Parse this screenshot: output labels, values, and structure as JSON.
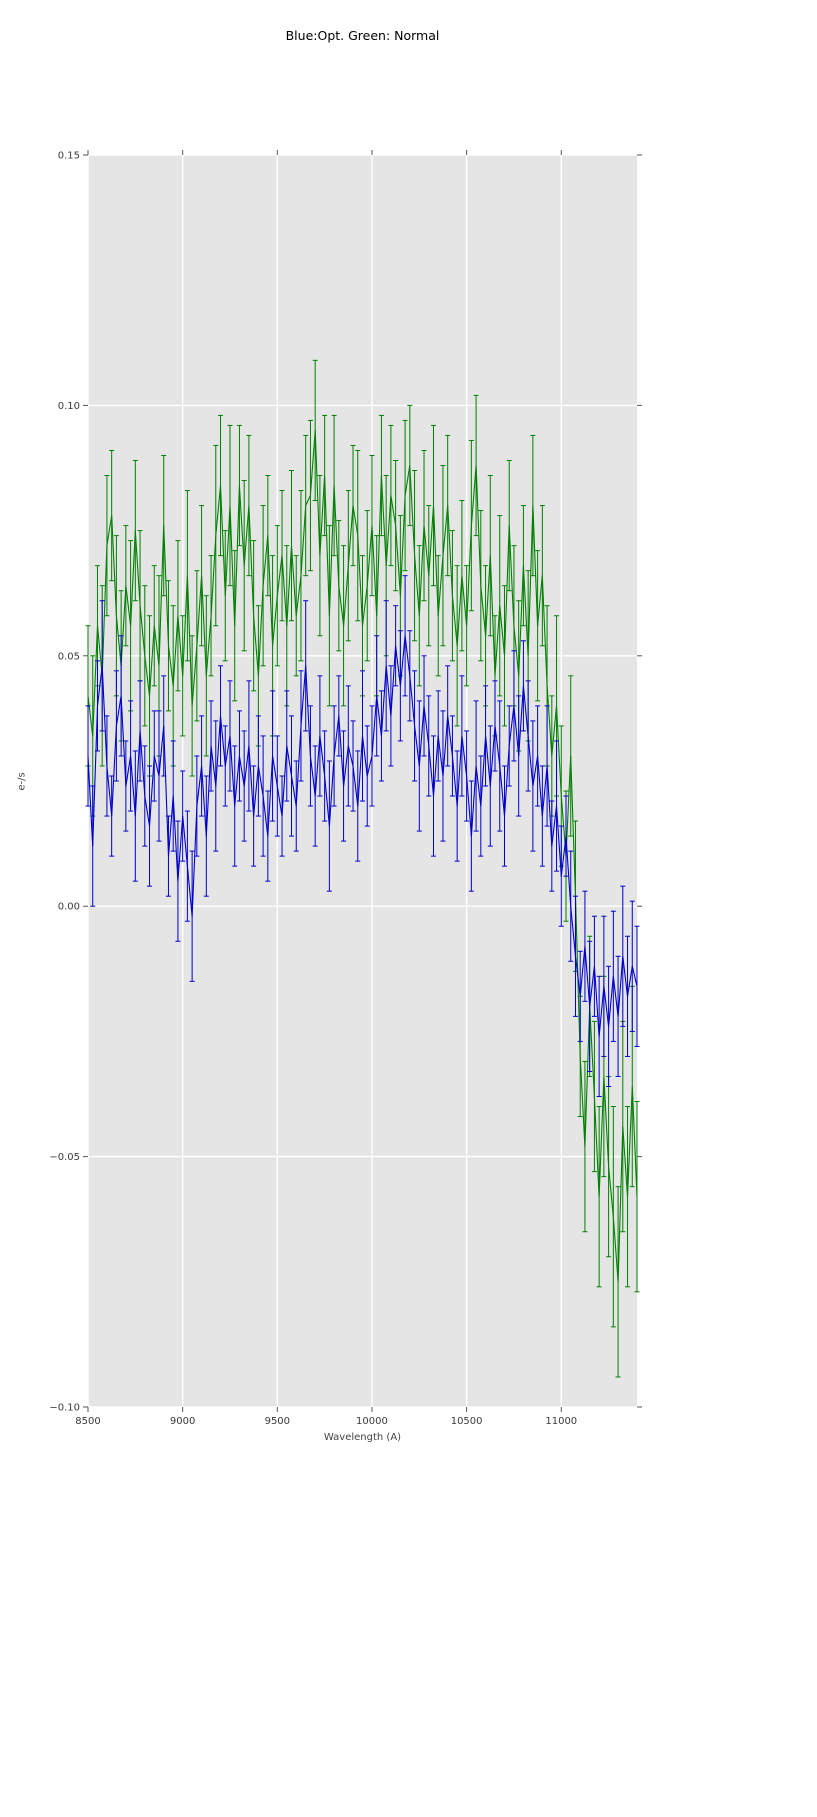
{
  "chart_data": {
    "type": "line",
    "title": "Blue:Opt. Green: Normal",
    "xlabel": "Wavelength (A)",
    "ylabel": "e-/s",
    "xlim": [
      8500,
      11400
    ],
    "ylim": [
      -0.1,
      0.15
    ],
    "xticks": [
      8500,
      9000,
      9500,
      10000,
      10500,
      11000
    ],
    "yticks": [
      -0.1,
      -0.05,
      0.0,
      0.05,
      0.1,
      0.15
    ],
    "grid": true,
    "legend": "none",
    "colors": {
      "plot_bg": "#e5e5e5",
      "grid": "#ffffff",
      "tick": "#555555",
      "blue": "#0000cd",
      "green": "#008000"
    },
    "x": [
      8500,
      8525,
      8550,
      8575,
      8600,
      8625,
      8650,
      8675,
      8700,
      8725,
      8750,
      8775,
      8800,
      8825,
      8850,
      8875,
      8900,
      8925,
      8950,
      8975,
      9000,
      9025,
      9050,
      9075,
      9100,
      9125,
      9150,
      9175,
      9200,
      9225,
      9250,
      9275,
      9300,
      9325,
      9350,
      9375,
      9400,
      9425,
      9450,
      9475,
      9500,
      9525,
      9550,
      9575,
      9600,
      9625,
      9650,
      9675,
      9700,
      9725,
      9750,
      9775,
      9800,
      9825,
      9850,
      9875,
      9900,
      9925,
      9950,
      9975,
      10000,
      10025,
      10050,
      10075,
      10100,
      10125,
      10150,
      10175,
      10200,
      10225,
      10250,
      10275,
      10300,
      10325,
      10350,
      10375,
      10400,
      10425,
      10450,
      10475,
      10500,
      10525,
      10550,
      10575,
      10600,
      10625,
      10650,
      10675,
      10700,
      10725,
      10750,
      10775,
      10800,
      10825,
      10850,
      10875,
      10900,
      10925,
      10950,
      10975,
      11000,
      11025,
      11050,
      11075,
      11100,
      11125,
      11150,
      11175,
      11200,
      11225,
      11250,
      11275,
      11300,
      11325,
      11350,
      11375,
      11400
    ],
    "series": [
      {
        "name": "Opt",
        "color_key": "blue",
        "values": [
          0.03,
          0.012,
          0.04,
          0.048,
          0.028,
          0.018,
          0.036,
          0.042,
          0.024,
          0.03,
          0.018,
          0.035,
          0.022,
          0.016,
          0.03,
          0.026,
          0.036,
          0.01,
          0.022,
          0.005,
          0.018,
          0.008,
          -0.002,
          0.02,
          0.028,
          0.014,
          0.032,
          0.024,
          0.038,
          0.028,
          0.034,
          0.02,
          0.03,
          0.024,
          0.032,
          0.018,
          0.028,
          0.022,
          0.014,
          0.03,
          0.024,
          0.018,
          0.032,
          0.026,
          0.02,
          0.036,
          0.048,
          0.03,
          0.022,
          0.034,
          0.026,
          0.016,
          0.03,
          0.038,
          0.024,
          0.032,
          0.028,
          0.02,
          0.034,
          0.026,
          0.03,
          0.042,
          0.034,
          0.048,
          0.038,
          0.052,
          0.044,
          0.054,
          0.046,
          0.036,
          0.028,
          0.04,
          0.032,
          0.022,
          0.034,
          0.026,
          0.038,
          0.03,
          0.02,
          0.034,
          0.026,
          0.014,
          0.028,
          0.02,
          0.034,
          0.024,
          0.036,
          0.028,
          0.018,
          0.032,
          0.04,
          0.03,
          0.044,
          0.034,
          0.024,
          0.03,
          0.018,
          0.028,
          0.012,
          0.02,
          0.006,
          0.014,
          0.0,
          -0.01,
          -0.018,
          -0.008,
          -0.02,
          -0.012,
          -0.026,
          -0.016,
          -0.024,
          -0.014,
          -0.022,
          -0.01,
          -0.018,
          -0.012,
          -0.016
        ],
        "yerr": [
          0.01,
          0.012,
          0.009,
          0.013,
          0.01,
          0.008,
          0.011,
          0.012,
          0.009,
          0.011,
          0.013,
          0.01,
          0.01,
          0.012,
          0.009,
          0.013,
          0.01,
          0.008,
          0.011,
          0.012,
          0.009,
          0.011,
          0.013,
          0.01,
          0.01,
          0.012,
          0.009,
          0.013,
          0.01,
          0.008,
          0.011,
          0.012,
          0.009,
          0.011,
          0.013,
          0.01,
          0.01,
          0.012,
          0.009,
          0.013,
          0.01,
          0.008,
          0.011,
          0.012,
          0.009,
          0.011,
          0.013,
          0.01,
          0.01,
          0.012,
          0.009,
          0.013,
          0.01,
          0.008,
          0.011,
          0.012,
          0.009,
          0.011,
          0.013,
          0.01,
          0.01,
          0.012,
          0.009,
          0.013,
          0.01,
          0.008,
          0.011,
          0.012,
          0.009,
          0.011,
          0.013,
          0.01,
          0.01,
          0.012,
          0.009,
          0.013,
          0.01,
          0.008,
          0.011,
          0.012,
          0.009,
          0.011,
          0.013,
          0.01,
          0.01,
          0.012,
          0.009,
          0.013,
          0.01,
          0.008,
          0.011,
          0.012,
          0.009,
          0.011,
          0.013,
          0.01,
          0.01,
          0.012,
          0.009,
          0.013,
          0.01,
          0.008,
          0.011,
          0.012,
          0.009,
          0.011,
          0.013,
          0.01,
          0.012,
          0.014,
          0.012,
          0.013,
          0.012,
          0.014,
          0.012,
          0.013,
          0.012
        ]
      },
      {
        "name": "Normal",
        "color_key": "green",
        "values": [
          0.042,
          0.034,
          0.056,
          0.046,
          0.072,
          0.078,
          0.058,
          0.048,
          0.064,
          0.056,
          0.075,
          0.06,
          0.05,
          0.042,
          0.056,
          0.048,
          0.076,
          0.052,
          0.044,
          0.058,
          0.046,
          0.066,
          0.04,
          0.052,
          0.066,
          0.046,
          0.058,
          0.074,
          0.084,
          0.062,
          0.08,
          0.056,
          0.084,
          0.068,
          0.08,
          0.058,
          0.046,
          0.064,
          0.074,
          0.052,
          0.062,
          0.07,
          0.056,
          0.072,
          0.058,
          0.066,
          0.08,
          0.082,
          0.095,
          0.07,
          0.086,
          0.058,
          0.084,
          0.064,
          0.056,
          0.068,
          0.08,
          0.074,
          0.056,
          0.064,
          0.076,
          0.058,
          0.086,
          0.068,
          0.082,
          0.076,
          0.062,
          0.082,
          0.088,
          0.07,
          0.058,
          0.076,
          0.066,
          0.08,
          0.058,
          0.07,
          0.08,
          0.062,
          0.052,
          0.066,
          0.056,
          0.076,
          0.088,
          0.064,
          0.054,
          0.07,
          0.046,
          0.06,
          0.05,
          0.076,
          0.056,
          0.046,
          0.068,
          0.05,
          0.08,
          0.056,
          0.066,
          0.044,
          0.03,
          0.04,
          0.022,
          0.01,
          0.03,
          0.002,
          -0.03,
          -0.048,
          -0.02,
          -0.038,
          -0.058,
          -0.034,
          -0.052,
          -0.062,
          -0.075,
          -0.044,
          -0.058,
          -0.036,
          -0.058
        ],
        "yerr": [
          0.014,
          0.016,
          0.012,
          0.018,
          0.014,
          0.013,
          0.016,
          0.015,
          0.012,
          0.017,
          0.014,
          0.015,
          0.014,
          0.016,
          0.012,
          0.018,
          0.014,
          0.013,
          0.016,
          0.015,
          0.012,
          0.017,
          0.014,
          0.015,
          0.014,
          0.016,
          0.012,
          0.018,
          0.014,
          0.013,
          0.016,
          0.015,
          0.012,
          0.017,
          0.014,
          0.015,
          0.014,
          0.016,
          0.012,
          0.018,
          0.014,
          0.013,
          0.016,
          0.015,
          0.012,
          0.017,
          0.014,
          0.015,
          0.014,
          0.016,
          0.012,
          0.018,
          0.014,
          0.013,
          0.016,
          0.015,
          0.012,
          0.017,
          0.014,
          0.015,
          0.014,
          0.016,
          0.012,
          0.018,
          0.014,
          0.013,
          0.016,
          0.015,
          0.012,
          0.017,
          0.014,
          0.015,
          0.014,
          0.016,
          0.012,
          0.018,
          0.014,
          0.013,
          0.016,
          0.015,
          0.012,
          0.017,
          0.014,
          0.015,
          0.014,
          0.016,
          0.012,
          0.018,
          0.014,
          0.013,
          0.016,
          0.015,
          0.012,
          0.017,
          0.014,
          0.015,
          0.014,
          0.016,
          0.012,
          0.018,
          0.014,
          0.013,
          0.016,
          0.015,
          0.012,
          0.017,
          0.014,
          0.015,
          0.018,
          0.02,
          0.018,
          0.022,
          0.019,
          0.021,
          0.018,
          0.02,
          0.019
        ]
      }
    ]
  }
}
